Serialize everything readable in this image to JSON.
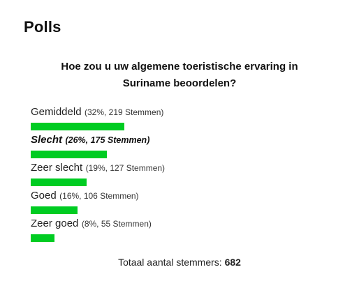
{
  "widget": {
    "title": "Polls"
  },
  "poll": {
    "question_line1": "Hoe zou u uw algemene toeristische ervaring in",
    "question_line2": "Suriname beoordelen?",
    "bar_color": "#00cc22",
    "options": [
      {
        "label": "Gemiddeld",
        "stats": "(32%, 219 Stemmen)",
        "percent": 32,
        "selected": false
      },
      {
        "label": "Slecht",
        "stats": "(26%, 175 Stemmen)",
        "percent": 26,
        "selected": true
      },
      {
        "label": "Zeer slecht",
        "stats": "(19%, 127 Stemmen)",
        "percent": 19,
        "selected": false
      },
      {
        "label": "Goed",
        "stats": "(16%, 106 Stemmen)",
        "percent": 16,
        "selected": false
      },
      {
        "label": "Zeer goed",
        "stats": "(8%, 55 Stemmen)",
        "percent": 8,
        "selected": false
      }
    ],
    "total_label": "Totaal aantal stemmers:",
    "total_value": "682"
  }
}
